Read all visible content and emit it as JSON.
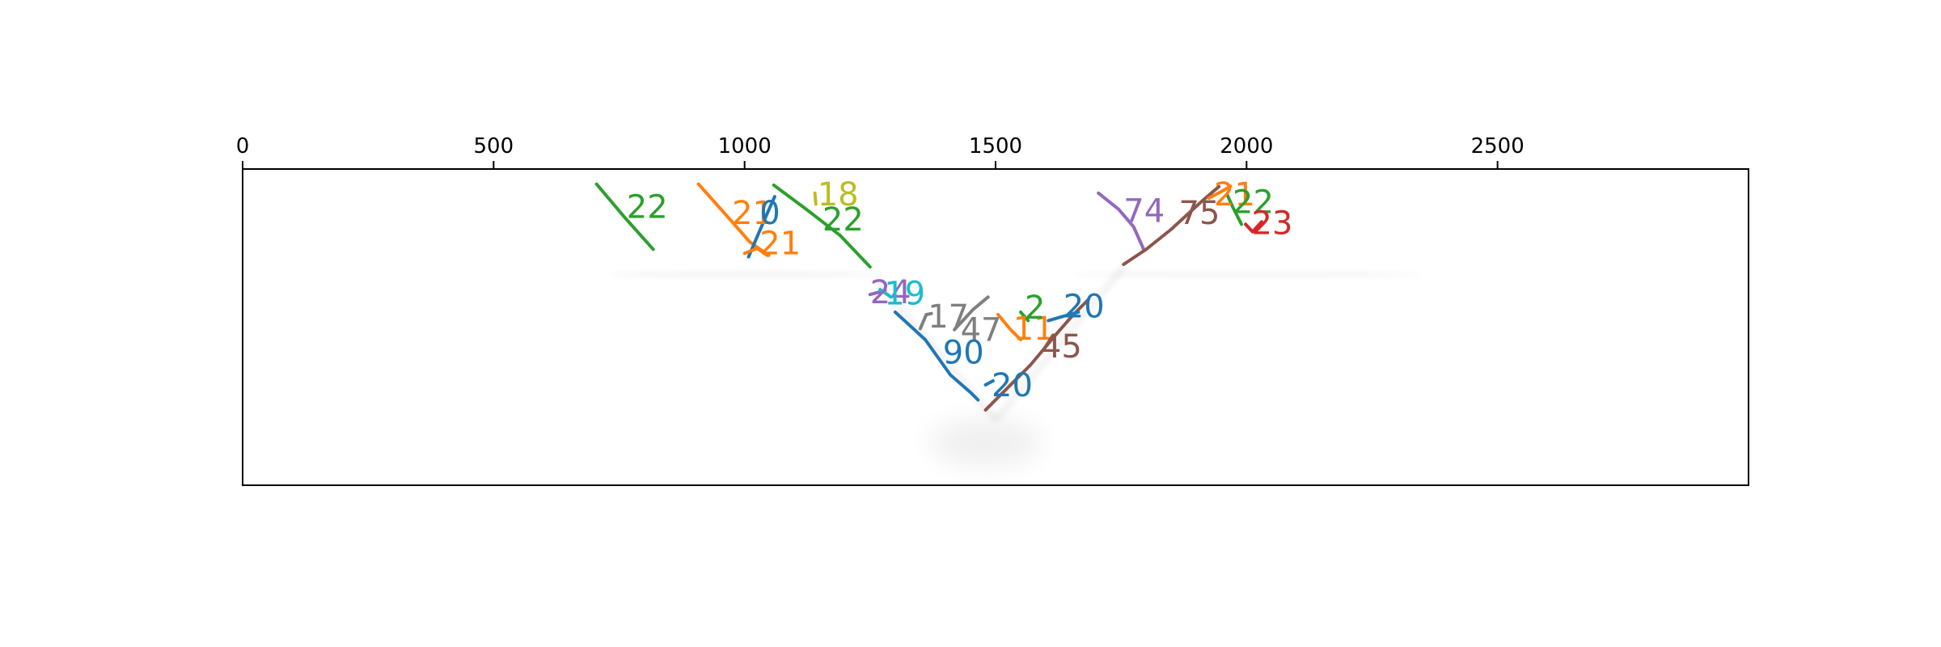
{
  "chart_data": {
    "type": "line",
    "title": "",
    "xlabel": "",
    "ylabel": "",
    "xlim": [
      0,
      3000
    ],
    "ylim": [
      630,
      0
    ],
    "x_axis_position": "top",
    "y_axis_visible": false,
    "grid": false,
    "legend": "none",
    "xticks": [
      0,
      500,
      1000,
      1500,
      2000,
      2500
    ],
    "xtick_labels": [
      "0",
      "500",
      "1000",
      "1500",
      "2000",
      "2500"
    ],
    "background_ghost_color": "#000000",
    "series": [
      {
        "label": "22",
        "color": "#2ca02c",
        "points": [
          [
            705,
            30
          ],
          [
            760,
            95
          ],
          [
            818,
            160
          ]
        ],
        "label_at": [
          765,
          80
        ]
      },
      {
        "label": "21",
        "color": "#ff7f0e",
        "points": [
          [
            908,
            30
          ],
          [
            960,
            88
          ],
          [
            1010,
            145
          ],
          [
            1048,
            172
          ]
        ],
        "label_at": [
          975,
          92
        ]
      },
      {
        "label": "0",
        "color": "#1f77b4",
        "points": [
          [
            1060,
            55
          ],
          [
            1040,
            100
          ],
          [
            1022,
            142
          ],
          [
            1008,
            175
          ]
        ],
        "label_at": [
          1030,
          92
        ]
      },
      {
        "label": "21",
        "color": "#ff7f0e",
        "points": [
          [
            1000,
            168
          ],
          [
            1025,
            158
          ],
          [
            1045,
            172
          ]
        ],
        "label_at": [
          1030,
          152
        ]
      },
      {
        "label": "18",
        "color": "#bcbd22",
        "points": [
          [
            1140,
            48
          ],
          [
            1142,
            70
          ]
        ],
        "label_at": [
          1145,
          55
        ]
      },
      {
        "label": "22",
        "color": "#2ca02c",
        "points": [
          [
            1058,
            32
          ],
          [
            1120,
            78
          ],
          [
            1190,
            132
          ],
          [
            1250,
            195
          ]
        ],
        "label_at": [
          1155,
          105
        ]
      },
      {
        "label": "24",
        "color": "#9467bd",
        "points": [
          [
            1250,
            250
          ],
          [
            1280,
            242
          ]
        ],
        "label_at": [
          1250,
          250
        ]
      },
      {
        "label": "19",
        "color": "#17becf",
        "points": [
          [
            1270,
            240
          ],
          [
            1292,
            255
          ]
        ],
        "label_at": [
          1278,
          252
        ]
      },
      {
        "label": "17",
        "color": "#7f7f7f",
        "points": [
          [
            1350,
            318
          ],
          [
            1362,
            290
          ],
          [
            1372,
            288
          ]
        ],
        "label_at": [
          1365,
          298
        ]
      },
      {
        "label": "47",
        "color": "#7f7f7f",
        "points": [
          [
            1418,
            320
          ],
          [
            1455,
            280
          ],
          [
            1485,
            255
          ]
        ],
        "label_at": [
          1430,
          325
        ]
      },
      {
        "label": "90",
        "color": "#1f77b4",
        "points": [
          [
            1300,
            285
          ],
          [
            1360,
            340
          ],
          [
            1410,
            410
          ],
          [
            1450,
            445
          ],
          [
            1465,
            460
          ]
        ],
        "label_at": [
          1395,
          370
        ]
      },
      {
        "label": "20",
        "color": "#1f77b4",
        "points": [
          [
            1480,
            430
          ],
          [
            1495,
            422
          ]
        ],
        "label_at": [
          1492,
          435
        ]
      },
      {
        "label": "11",
        "color": "#ff7f0e",
        "points": [
          [
            1505,
            290
          ],
          [
            1530,
            320
          ],
          [
            1550,
            340
          ]
        ],
        "label_at": [
          1535,
          322
        ]
      },
      {
        "label": "45",
        "color": "#8c564b",
        "points": [
          [
            1480,
            480
          ],
          [
            1520,
            440
          ],
          [
            1570,
            390
          ],
          [
            1620,
            330
          ],
          [
            1655,
            290
          ],
          [
            1685,
            260
          ]
        ],
        "label_at": [
          1590,
          358
        ]
      },
      {
        "label": "2",
        "color": "#2ca02c",
        "points": [
          [
            1550,
            285
          ],
          [
            1565,
            302
          ]
        ],
        "label_at": [
          1558,
          280
        ]
      },
      {
        "label": "20",
        "color": "#1f77b4",
        "points": [
          [
            1605,
            302
          ],
          [
            1640,
            292
          ],
          [
            1665,
            285
          ]
        ],
        "label_at": [
          1635,
          278
        ]
      },
      {
        "label": "74",
        "color": "#9467bd",
        "points": [
          [
            1705,
            48
          ],
          [
            1745,
            80
          ],
          [
            1775,
            115
          ],
          [
            1795,
            160
          ]
        ],
        "label_at": [
          1755,
          88
        ]
      },
      {
        "label": "75",
        "color": "#8c564b",
        "points": [
          [
            1755,
            190
          ],
          [
            1800,
            160
          ],
          [
            1850,
            120
          ],
          [
            1910,
            65
          ],
          [
            1945,
            35
          ]
        ],
        "label_at": [
          1865,
          92
        ]
      },
      {
        "label": "21",
        "color": "#ff7f0e",
        "points": [
          [
            1925,
            58
          ],
          [
            1955,
            42
          ],
          [
            1968,
            34
          ]
        ],
        "label_at": [
          1935,
          55
        ]
      },
      {
        "label": "22",
        "color": "#2ca02c",
        "points": [
          [
            1962,
            52
          ],
          [
            1972,
            75
          ],
          [
            1990,
            110
          ]
        ],
        "label_at": [
          1972,
          70
        ]
      },
      {
        "label": "23",
        "color": "#d62728",
        "points": [
          [
            1998,
            110
          ],
          [
            2012,
            125
          ],
          [
            2030,
            105
          ]
        ],
        "label_at": [
          2010,
          112
        ]
      }
    ]
  }
}
